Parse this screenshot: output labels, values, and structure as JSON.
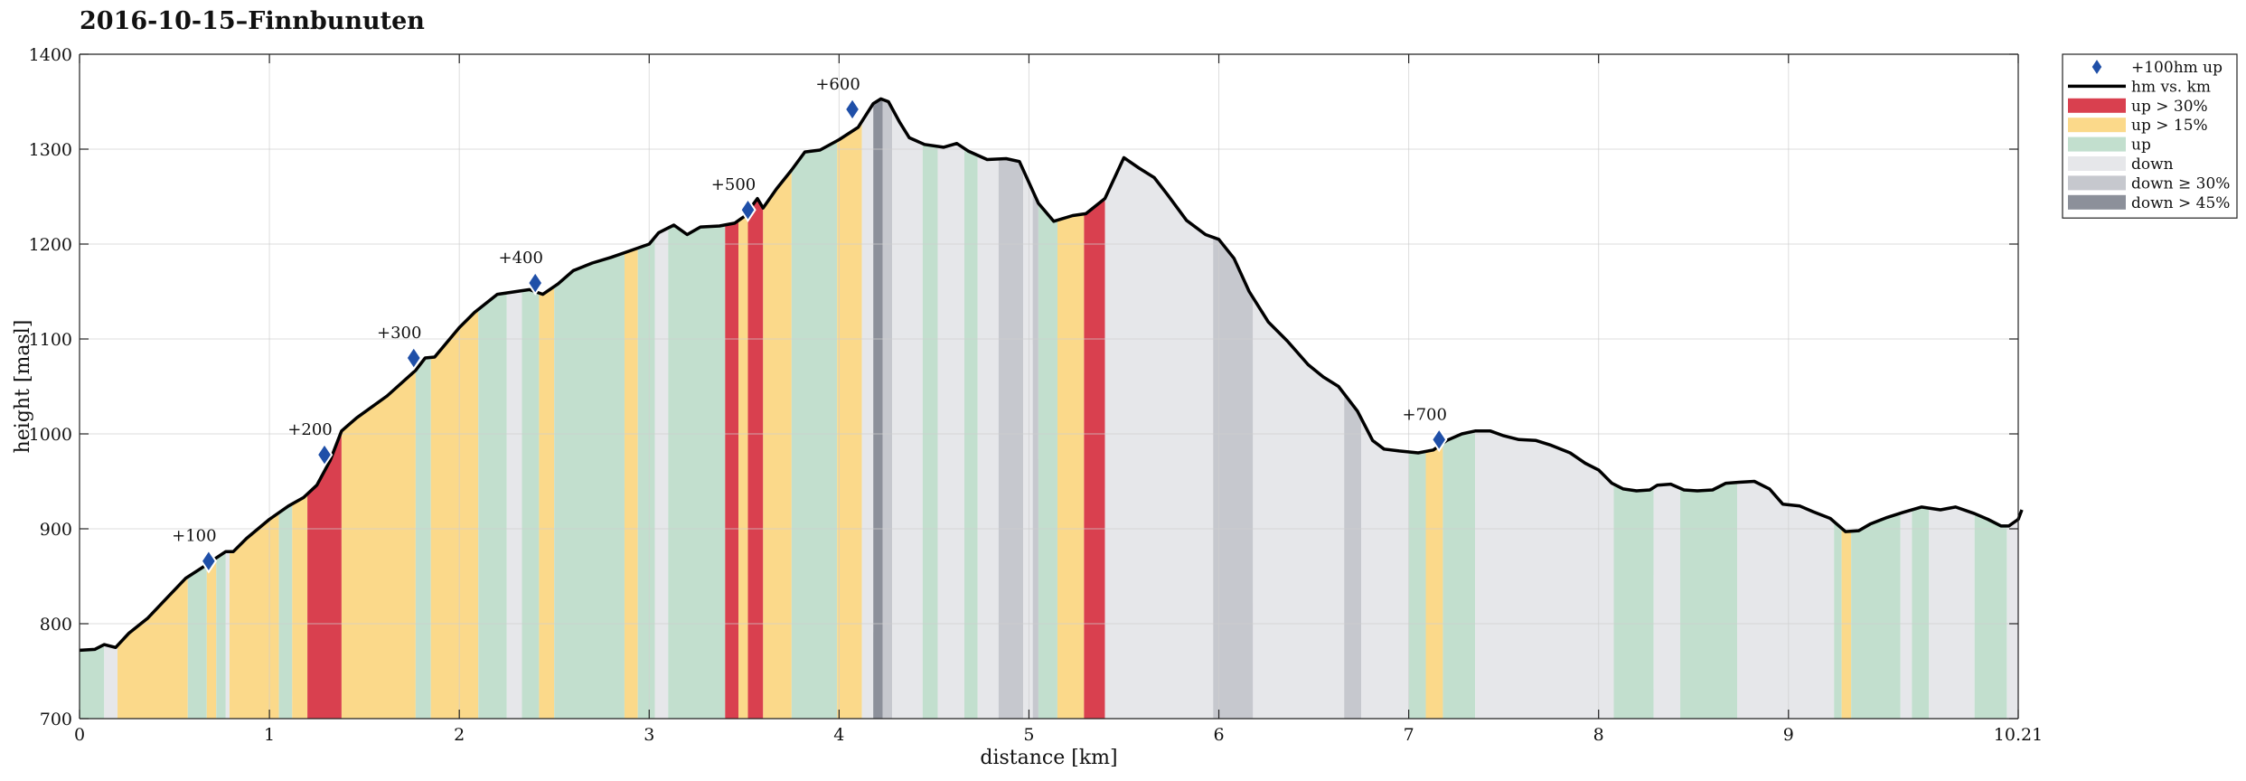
{
  "title": "2016-10-15–Finnbunuten",
  "chart_data": {
    "type": "area",
    "title": "2016-10-15–Finnbunuten",
    "xlabel": "distance [km]",
    "ylabel": "height [masl]",
    "xlim": [
      0,
      10.21
    ],
    "ylim": [
      700,
      1400
    ],
    "xticks": [
      "0",
      "1",
      "2",
      "3",
      "4",
      "5",
      "6",
      "7",
      "8",
      "9",
      "10.21"
    ],
    "xtick_values": [
      0,
      1,
      2,
      3,
      4,
      5,
      6,
      7,
      8,
      9,
      10.21
    ],
    "yticks": [
      700,
      800,
      900,
      1000,
      1100,
      1200,
      1300,
      1400
    ],
    "grid": true,
    "legend_position": "outside-top-right",
    "legend": [
      {
        "key": "marker",
        "label": "+100hm up",
        "color": "#1f4fa8",
        "kind": "diamond"
      },
      {
        "key": "line",
        "label": "hm vs. km",
        "color": "#000000",
        "kind": "line"
      },
      {
        "key": "up30",
        "label": "up > 30%",
        "color": "#d9404f",
        "kind": "patch"
      },
      {
        "key": "up15",
        "label": "up > 15%",
        "color": "#fbd98a",
        "kind": "patch"
      },
      {
        "key": "up",
        "label": "up",
        "color": "#c2dfce",
        "kind": "patch"
      },
      {
        "key": "down",
        "label": "down",
        "color": "#e6e7ea",
        "kind": "patch"
      },
      {
        "key": "down30",
        "label": "down ≥ 30%",
        "color": "#c6c8ce",
        "kind": "patch"
      },
      {
        "key": "down45",
        "label": "down > 45%",
        "color": "#8c909a",
        "kind": "patch"
      }
    ],
    "profile": [
      [
        0,
        772
      ],
      [
        0.08,
        773
      ],
      [
        0.13,
        778
      ],
      [
        0.19,
        775
      ],
      [
        0.26,
        790
      ],
      [
        0.36,
        806
      ],
      [
        0.46,
        827
      ],
      [
        0.56,
        848
      ],
      [
        0.66,
        861
      ],
      [
        0.71,
        868
      ],
      [
        0.77,
        876
      ],
      [
        0.81,
        876
      ],
      [
        0.88,
        890
      ],
      [
        1.0,
        910
      ],
      [
        1.1,
        924
      ],
      [
        1.18,
        933
      ],
      [
        1.25,
        946
      ],
      [
        1.32,
        972
      ],
      [
        1.38,
        1003
      ],
      [
        1.46,
        1017
      ],
      [
        1.62,
        1040
      ],
      [
        1.77,
        1067
      ],
      [
        1.82,
        1080
      ],
      [
        1.87,
        1081
      ],
      [
        2.0,
        1112
      ],
      [
        2.08,
        1128
      ],
      [
        2.2,
        1147
      ],
      [
        2.3,
        1150
      ],
      [
        2.37,
        1152
      ],
      [
        2.44,
        1147
      ],
      [
        2.52,
        1158
      ],
      [
        2.6,
        1172
      ],
      [
        2.7,
        1180
      ],
      [
        2.8,
        1186
      ],
      [
        2.9,
        1193
      ],
      [
        3.0,
        1200
      ],
      [
        3.05,
        1212
      ],
      [
        3.13,
        1220
      ],
      [
        3.2,
        1210
      ],
      [
        3.27,
        1218
      ],
      [
        3.37,
        1219
      ],
      [
        3.45,
        1222
      ],
      [
        3.5,
        1229
      ],
      [
        3.57,
        1248
      ],
      [
        3.6,
        1238
      ],
      [
        3.67,
        1258
      ],
      [
        3.75,
        1278
      ],
      [
        3.82,
        1297
      ],
      [
        3.9,
        1299
      ],
      [
        4.0,
        1310
      ],
      [
        4.1,
        1323
      ],
      [
        4.18,
        1348
      ],
      [
        4.22,
        1353
      ],
      [
        4.26,
        1350
      ],
      [
        4.32,
        1328
      ],
      [
        4.37,
        1312
      ],
      [
        4.45,
        1305
      ],
      [
        4.55,
        1302
      ],
      [
        4.62,
        1306
      ],
      [
        4.68,
        1298
      ],
      [
        4.78,
        1289
      ],
      [
        4.88,
        1290
      ],
      [
        4.95,
        1287
      ],
      [
        5.05,
        1243
      ],
      [
        5.13,
        1224
      ],
      [
        5.23,
        1230
      ],
      [
        5.3,
        1232
      ],
      [
        5.4,
        1248
      ],
      [
        5.5,
        1291
      ],
      [
        5.58,
        1280
      ],
      [
        5.66,
        1270
      ],
      [
        5.73,
        1252
      ],
      [
        5.83,
        1225
      ],
      [
        5.93,
        1210
      ],
      [
        6.0,
        1205
      ],
      [
        6.08,
        1185
      ],
      [
        6.16,
        1150
      ],
      [
        6.26,
        1118
      ],
      [
        6.36,
        1098
      ],
      [
        6.47,
        1073
      ],
      [
        6.55,
        1060
      ],
      [
        6.63,
        1050
      ],
      [
        6.73,
        1024
      ],
      [
        6.81,
        993
      ],
      [
        6.87,
        984
      ],
      [
        6.95,
        982
      ],
      [
        7.05,
        980
      ],
      [
        7.13,
        983
      ],
      [
        7.2,
        993
      ],
      [
        7.28,
        1000
      ],
      [
        7.35,
        1003
      ],
      [
        7.43,
        1003
      ],
      [
        7.5,
        998
      ],
      [
        7.58,
        994
      ],
      [
        7.67,
        993
      ],
      [
        7.75,
        988
      ],
      [
        7.85,
        980
      ],
      [
        7.93,
        969
      ],
      [
        8.0,
        962
      ],
      [
        8.07,
        948
      ],
      [
        8.13,
        942
      ],
      [
        8.2,
        940
      ],
      [
        8.27,
        941
      ],
      [
        8.31,
        946
      ],
      [
        8.38,
        947
      ],
      [
        8.45,
        941
      ],
      [
        8.52,
        940
      ],
      [
        8.6,
        941
      ],
      [
        8.67,
        948
      ],
      [
        8.74,
        949
      ],
      [
        8.82,
        950
      ],
      [
        8.9,
        942
      ],
      [
        8.97,
        926
      ],
      [
        9.06,
        924
      ],
      [
        9.13,
        918
      ],
      [
        9.22,
        911
      ],
      [
        9.3,
        897
      ],
      [
        9.37,
        898
      ],
      [
        9.43,
        905
      ],
      [
        9.52,
        912
      ],
      [
        9.6,
        917
      ],
      [
        9.7,
        923
      ],
      [
        9.8,
        920
      ],
      [
        9.88,
        923
      ],
      [
        9.98,
        916
      ],
      [
        10.05,
        910
      ],
      [
        10.12,
        903
      ],
      [
        10.16,
        903
      ],
      [
        10.21,
        910
      ],
      [
        10.26,
        920
      ]
    ],
    "segments": [
      [
        0.0,
        0.13,
        "up"
      ],
      [
        0.13,
        0.2,
        "down"
      ],
      [
        0.2,
        0.57,
        "up15"
      ],
      [
        0.57,
        0.67,
        "up"
      ],
      [
        0.67,
        0.72,
        "up15"
      ],
      [
        0.72,
        0.77,
        "up"
      ],
      [
        0.77,
        0.79,
        "down"
      ],
      [
        0.79,
        1.05,
        "up15"
      ],
      [
        1.05,
        1.12,
        "up"
      ],
      [
        1.12,
        1.2,
        "up15"
      ],
      [
        1.2,
        1.38,
        "up30"
      ],
      [
        1.38,
        1.77,
        "up15"
      ],
      [
        1.77,
        1.85,
        "up"
      ],
      [
        1.85,
        2.1,
        "up15"
      ],
      [
        2.1,
        2.25,
        "up"
      ],
      [
        2.25,
        2.33,
        "down"
      ],
      [
        2.33,
        2.42,
        "up"
      ],
      [
        2.42,
        2.5,
        "up15"
      ],
      [
        2.5,
        2.87,
        "up"
      ],
      [
        2.87,
        2.94,
        "up15"
      ],
      [
        2.94,
        3.03,
        "up"
      ],
      [
        3.03,
        3.1,
        "down"
      ],
      [
        3.1,
        3.4,
        "up"
      ],
      [
        3.4,
        3.47,
        "up30"
      ],
      [
        3.47,
        3.52,
        "up15"
      ],
      [
        3.52,
        3.6,
        "up30"
      ],
      [
        3.6,
        3.75,
        "up15"
      ],
      [
        3.75,
        3.99,
        "up"
      ],
      [
        3.99,
        4.12,
        "up15"
      ],
      [
        4.12,
        4.18,
        "down"
      ],
      [
        4.18,
        4.23,
        "down45"
      ],
      [
        4.23,
        4.28,
        "down30"
      ],
      [
        4.28,
        4.44,
        "down"
      ],
      [
        4.44,
        4.52,
        "up"
      ],
      [
        4.52,
        4.66,
        "down"
      ],
      [
        4.66,
        4.73,
        "up"
      ],
      [
        4.73,
        4.84,
        "down"
      ],
      [
        4.84,
        4.97,
        "down30"
      ],
      [
        4.97,
        5.02,
        "down"
      ],
      [
        5.02,
        5.05,
        "down30"
      ],
      [
        5.05,
        5.15,
        "up"
      ],
      [
        5.15,
        5.29,
        "up15"
      ],
      [
        5.29,
        5.4,
        "up30"
      ],
      [
        5.4,
        5.97,
        "down"
      ],
      [
        5.97,
        6.18,
        "down30"
      ],
      [
        6.18,
        6.66,
        "down"
      ],
      [
        6.66,
        6.75,
        "down30"
      ],
      [
        6.75,
        7.0,
        "down"
      ],
      [
        7.0,
        7.09,
        "up"
      ],
      [
        7.09,
        7.18,
        "up15"
      ],
      [
        7.18,
        7.35,
        "up"
      ],
      [
        7.35,
        8.08,
        "down"
      ],
      [
        8.08,
        8.29,
        "up"
      ],
      [
        8.29,
        8.43,
        "down"
      ],
      [
        8.43,
        8.73,
        "up"
      ],
      [
        8.73,
        9.24,
        "down"
      ],
      [
        9.24,
        9.28,
        "up"
      ],
      [
        9.28,
        9.33,
        "up15"
      ],
      [
        9.33,
        9.59,
        "up"
      ],
      [
        9.59,
        9.65,
        "down"
      ],
      [
        9.65,
        9.74,
        "up"
      ],
      [
        9.74,
        9.98,
        "down"
      ],
      [
        9.98,
        10.15,
        "up"
      ],
      [
        10.15,
        10.21,
        "down"
      ]
    ],
    "markers": [
      {
        "x": 0.68,
        "y": 866,
        "label": "+100"
      },
      {
        "x": 1.29,
        "y": 978,
        "label": "+200"
      },
      {
        "x": 1.76,
        "y": 1080,
        "label": "+300"
      },
      {
        "x": 2.4,
        "y": 1159,
        "label": "+400"
      },
      {
        "x": 3.52,
        "y": 1236,
        "label": "+500"
      },
      {
        "x": 4.07,
        "y": 1342,
        "label": "+600"
      },
      {
        "x": 7.16,
        "y": 994,
        "label": "+700"
      }
    ]
  }
}
